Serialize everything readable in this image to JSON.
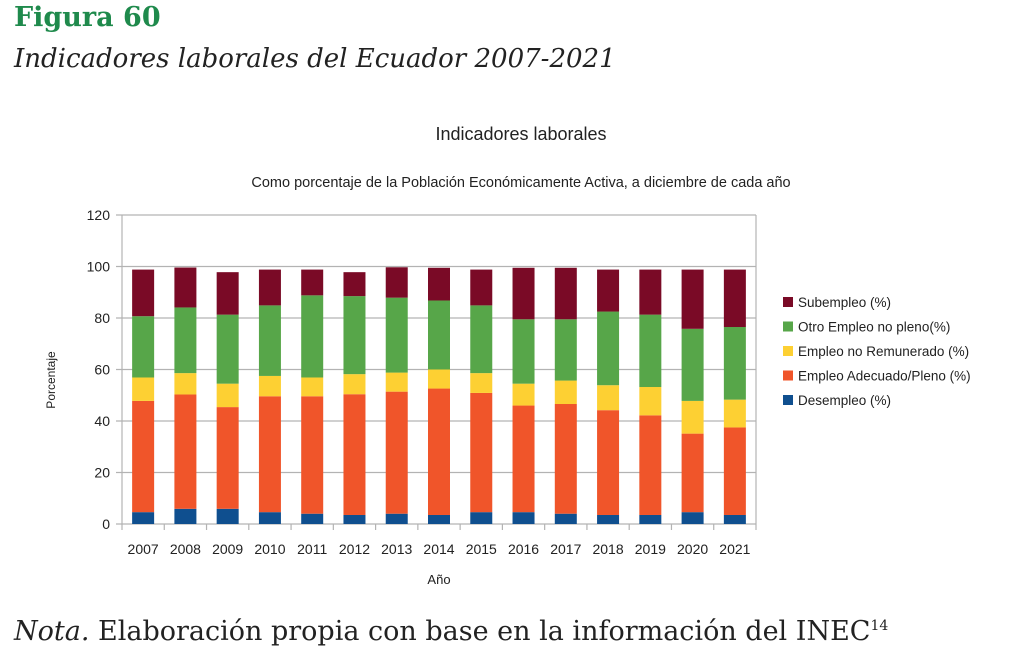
{
  "figure": {
    "label": "Figura 60",
    "title": "Indicadores laborales del Ecuador 2007-2021"
  },
  "note": {
    "lead": "Nota.",
    "text": " Elaboración propia con base en la información del INEC",
    "superscript": "14"
  },
  "chart_data": {
    "type": "bar",
    "stacked": true,
    "title": "Indicadores laborales",
    "subtitle": "Como porcentaje de la Población Económicamente Activa, a diciembre de cada año",
    "xlabel": "Año",
    "ylabel": "Porcentaje",
    "ylim": [
      0,
      120
    ],
    "yticks": [
      0,
      20,
      40,
      60,
      80,
      100,
      120
    ],
    "grid": true,
    "legend_position": "right",
    "categories": [
      "2007",
      "2008",
      "2009",
      "2010",
      "2011",
      "2012",
      "2013",
      "2014",
      "2015",
      "2016",
      "2017",
      "2018",
      "2019",
      "2020",
      "2021"
    ],
    "series": [
      {
        "name": "Desempleo (%)",
        "color": "#0f4f8f",
        "values": [
          4.6,
          5.9,
          5.9,
          4.6,
          4.0,
          3.5,
          4.0,
          3.5,
          4.6,
          4.6,
          4.0,
          3.5,
          3.5,
          4.6,
          3.5
        ]
      },
      {
        "name": "Empleo Adecuado/Pleno (%)",
        "color": "#f0552a",
        "values": [
          43.2,
          44.4,
          39.5,
          45.0,
          45.6,
          46.9,
          47.4,
          49.1,
          46.3,
          41.4,
          42.6,
          40.7,
          38.7,
          30.5,
          34.0
        ]
      },
      {
        "name": "Empleo no Remunerado (%)",
        "color": "#fdd033",
        "values": [
          9.1,
          8.3,
          9.1,
          7.9,
          7.3,
          7.8,
          7.4,
          7.4,
          7.7,
          8.5,
          9.1,
          9.7,
          11.0,
          12.7,
          10.8
        ]
      },
      {
        "name": "Otro Empleo no pleno(%)",
        "color": "#57a649",
        "values": [
          23.8,
          25.5,
          26.8,
          27.4,
          31.9,
          30.3,
          29.1,
          26.8,
          26.3,
          25.0,
          23.8,
          28.6,
          28.1,
          28.0,
          28.2
        ]
      },
      {
        "name": "Subempleo (%)",
        "color": "#7a0a26",
        "values": [
          18.1,
          15.5,
          16.5,
          13.9,
          10.0,
          9.3,
          11.8,
          12.7,
          13.9,
          20.0,
          20.0,
          16.3,
          17.5,
          23.0,
          22.3
        ]
      }
    ],
    "legend_order": [
      "Subempleo (%)",
      "Otro Empleo no pleno(%)",
      "Empleo no Remunerado (%)",
      "Empleo Adecuado/Pleno (%)",
      "Desempleo (%)"
    ]
  }
}
